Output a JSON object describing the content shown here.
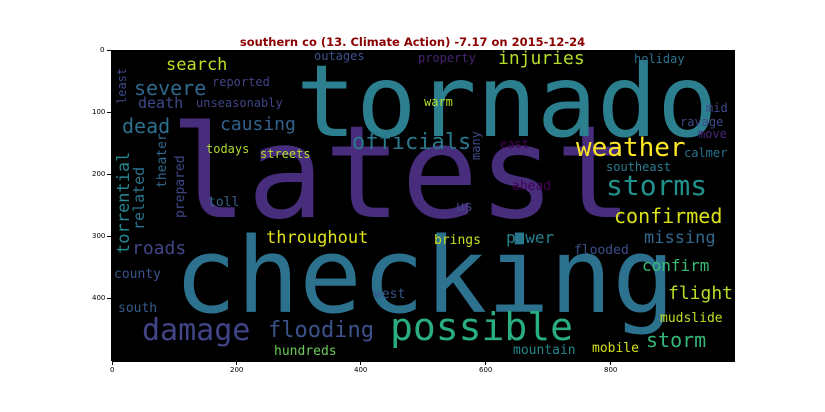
{
  "figure": {
    "title": "southern co (13. Climate Action) -7.17 on 2015-12-24"
  },
  "axes": {
    "x_ticks": [
      "0",
      "200",
      "400",
      "600",
      "800"
    ],
    "y_ticks": [
      "0",
      "100",
      "200",
      "300",
      "400"
    ]
  },
  "words": [
    {
      "text": "latest",
      "color": "#472d7b"
    },
    {
      "text": "checking",
      "color": "#2c728e"
    },
    {
      "text": "tornado",
      "color": "#2c7f8e"
    },
    {
      "text": "possible",
      "color": "#29af7f"
    },
    {
      "text": "damage",
      "color": "#414487"
    },
    {
      "text": "weather",
      "color": "#fde725"
    },
    {
      "text": "storms",
      "color": "#21918c"
    },
    {
      "text": "officials",
      "color": "#2a788e"
    },
    {
      "text": "confirmed",
      "color": "#dce319"
    },
    {
      "text": "flooding",
      "color": "#3b528b"
    },
    {
      "text": "storm",
      "color": "#35b779"
    },
    {
      "text": "severe",
      "color": "#31688e"
    },
    {
      "text": "dead",
      "color": "#2e6f8e"
    },
    {
      "text": "causing",
      "color": "#33638d"
    },
    {
      "text": "throughout",
      "color": "#e1e419"
    },
    {
      "text": "injuries",
      "color": "#b5de2b"
    },
    {
      "text": "search",
      "color": "#bddf26"
    },
    {
      "text": "death",
      "color": "#3e4a89"
    },
    {
      "text": "power",
      "color": "#26818e"
    },
    {
      "text": "missing",
      "color": "#31688e"
    },
    {
      "text": "flight",
      "color": "#b8de29"
    },
    {
      "text": "confirm",
      "color": "#3bbb75"
    },
    {
      "text": "roads",
      "color": "#404688"
    },
    {
      "text": "torrential",
      "color": "#24868e"
    },
    {
      "text": "related",
      "color": "#2b758e"
    },
    {
      "text": "mudslide",
      "color": "#c2df23"
    },
    {
      "text": "mountain",
      "color": "#24878e"
    },
    {
      "text": "mobile",
      "color": "#d8e219"
    },
    {
      "text": "hundreds",
      "color": "#6ccd5a"
    },
    {
      "text": "west",
      "color": "#3a548c"
    },
    {
      "text": "south",
      "color": "#365c8d"
    },
    {
      "text": "county",
      "color": "#39568c"
    },
    {
      "text": "flooded",
      "color": "#3d4e8a"
    },
    {
      "text": "brings",
      "color": "#c8e020"
    },
    {
      "text": "us",
      "color": "#414487"
    },
    {
      "text": "toll",
      "color": "#33638d"
    },
    {
      "text": "ahead",
      "color": "#440154"
    },
    {
      "text": "prepared",
      "color": "#3e4989"
    },
    {
      "text": "theater",
      "color": "#31688e"
    },
    {
      "text": "streets",
      "color": "#b5de2b"
    },
    {
      "text": "todays",
      "color": "#addc30"
    },
    {
      "text": "warm",
      "color": "#b5de2b"
    },
    {
      "text": "unseasonably",
      "color": "#414487"
    },
    {
      "text": "reported",
      "color": "#414487"
    },
    {
      "text": "least",
      "color": "#3e4989"
    },
    {
      "text": "outages",
      "color": "#3b528b"
    },
    {
      "text": "property",
      "color": "#482475"
    },
    {
      "text": "holiday",
      "color": "#2c728e"
    },
    {
      "text": "mid",
      "color": "#3e4989"
    },
    {
      "text": "ravage",
      "color": "#3e4989"
    },
    {
      "text": "move",
      "color": "#482878"
    },
    {
      "text": "calmer",
      "color": "#2c728e"
    },
    {
      "text": "southeast",
      "color": "#287c8e"
    },
    {
      "text": "east",
      "color": "#440154"
    },
    {
      "text": "many",
      "color": "#3e4a89"
    }
  ]
}
